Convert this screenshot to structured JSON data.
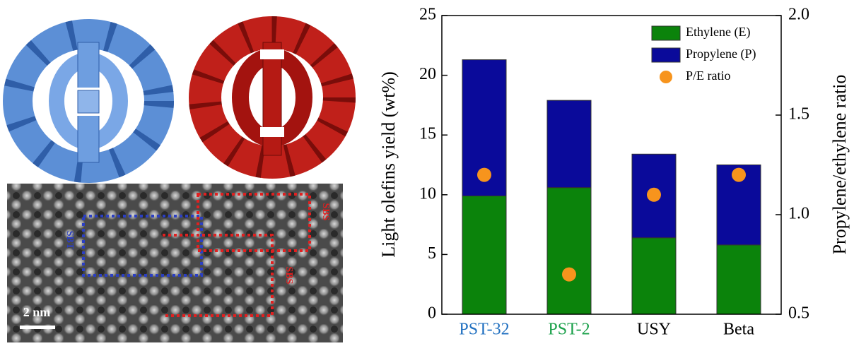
{
  "chart_data": {
    "type": "bar",
    "stacked": true,
    "categories": [
      "PST-32",
      "PST-2",
      "USY",
      "Beta"
    ],
    "category_colors": [
      "#1f6fc0",
      "#1aa04a",
      "#000000",
      "#000000"
    ],
    "series": [
      {
        "name": "Ethylene (E)",
        "color": "#0b830b",
        "values": [
          9.9,
          10.6,
          6.4,
          5.8
        ]
      },
      {
        "name": "Propylene (P)",
        "color": "#0a0a9a",
        "values": [
          11.4,
          7.3,
          7.0,
          6.7
        ]
      },
      {
        "name": "P/E ratio",
        "type": "scatter",
        "axis": "y2",
        "color": "#f7941d",
        "values": [
          1.2,
          0.7,
          1.1,
          1.2
        ]
      }
    ],
    "y_label": "Light olefins yield (wt%)",
    "y2_label": "Propylene/ethylene ratio",
    "ylim": [
      0,
      25
    ],
    "yticks": [
      0,
      5,
      10,
      15,
      20,
      25
    ],
    "y2lim": [
      0.5,
      2.0
    ],
    "y2ticks": [
      0.5,
      {
        "value": 1.0,
        "label": "1.0"
      },
      1.5,
      {
        "value": 2.0,
        "label": "2.0"
      }
    ],
    "legend": "upper right"
  },
  "image_panel": {
    "scale_bar": "2 nm",
    "annotations": [
      "SBT",
      "SBS",
      "SBS"
    ]
  }
}
